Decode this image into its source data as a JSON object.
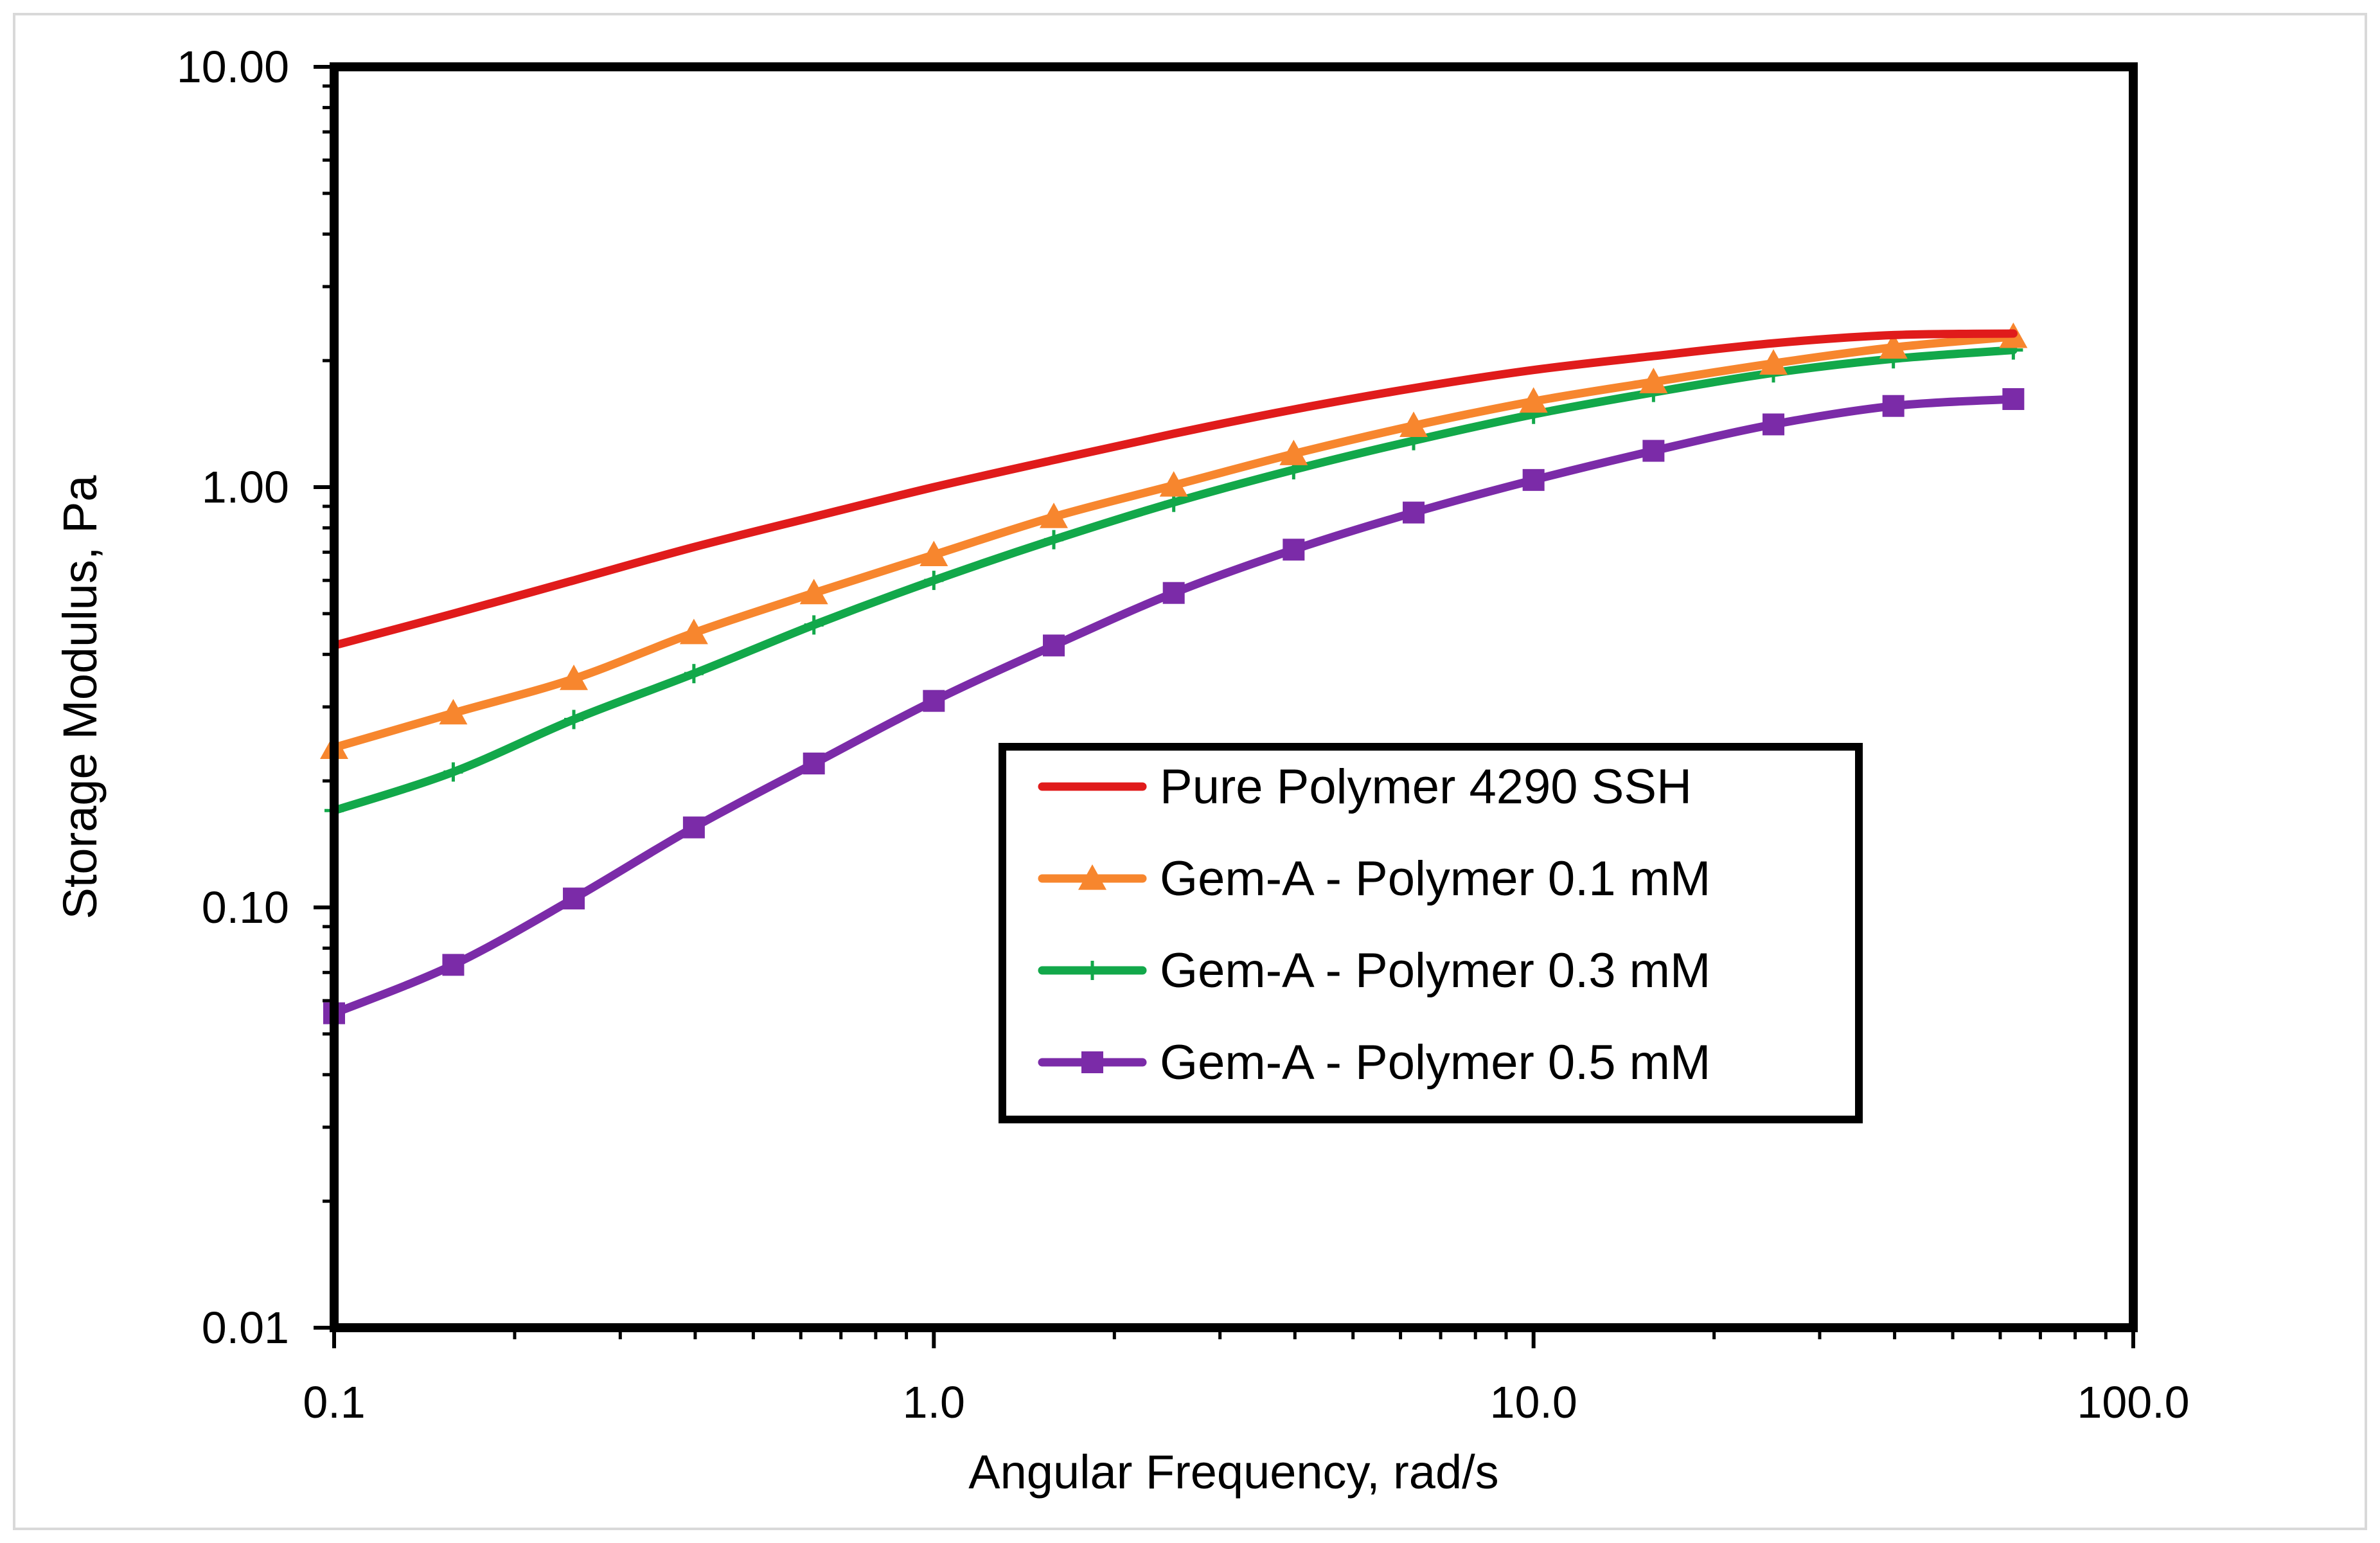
{
  "chart_data": {
    "type": "line",
    "title": "",
    "xlabel": "Angular Frequency, rad/s",
    "ylabel": "Storage Modulus, Pa",
    "xscale": "log",
    "yscale": "log",
    "xlim": [
      0.1,
      100
    ],
    "ylim": [
      0.01,
      10
    ],
    "x_tick_labels": [
      "0.1",
      "1.0",
      "10.0",
      "100.0"
    ],
    "y_tick_labels": [
      "0.01",
      "0.10",
      "1.00",
      "10.00"
    ],
    "grid": false,
    "legend_position": "center-right",
    "x": [
      0.1,
      0.158,
      0.251,
      0.398,
      0.631,
      1.0,
      1.585,
      2.512,
      3.981,
      6.31,
      10.0,
      15.85,
      25.12,
      39.81,
      63.1
    ],
    "series": [
      {
        "name": "Pure Polymer 4290 SSH",
        "color": "#e01b1b",
        "marker": "none",
        "values": [
          0.42,
          0.5,
          0.6,
          0.72,
          0.85,
          1.0,
          1.16,
          1.34,
          1.53,
          1.72,
          1.9,
          2.05,
          2.2,
          2.3,
          2.32
        ]
      },
      {
        "name": "Gem-A - Polymer 0.1 mM",
        "color": "#f7862e",
        "marker": "triangle",
        "values": [
          0.24,
          0.29,
          0.35,
          0.45,
          0.56,
          0.69,
          0.85,
          1.01,
          1.2,
          1.4,
          1.6,
          1.78,
          1.97,
          2.15,
          2.28
        ]
      },
      {
        "name": "Gem-A - Polymer 0.3 mM",
        "color": "#12a84a",
        "marker": "plus",
        "values": [
          0.17,
          0.21,
          0.28,
          0.36,
          0.47,
          0.6,
          0.75,
          0.92,
          1.1,
          1.29,
          1.49,
          1.68,
          1.87,
          2.02,
          2.12
        ]
      },
      {
        "name": "Gem-A - Polymer 0.5 mM",
        "color": "#7b2ba8",
        "marker": "square",
        "values": [
          0.056,
          0.073,
          0.105,
          0.155,
          0.22,
          0.31,
          0.42,
          0.56,
          0.71,
          0.87,
          1.04,
          1.22,
          1.41,
          1.56,
          1.62
        ]
      }
    ]
  }
}
